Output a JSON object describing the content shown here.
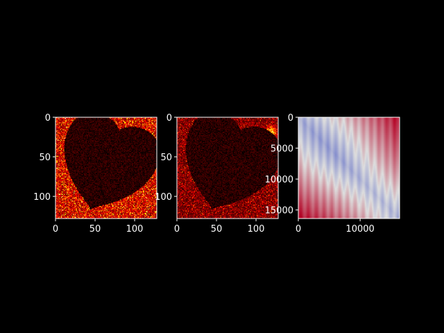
{
  "figure": {
    "background": "#000000",
    "text_color": "#ffffff"
  },
  "chart_data": [
    {
      "type": "heatmap",
      "colormap": "hot",
      "title": "",
      "xlabel": "",
      "ylabel": "",
      "xlim": [
        0,
        128
      ],
      "ylim": [
        128,
        0
      ],
      "x_ticks": [
        0,
        50,
        100
      ],
      "y_ticks": [
        0,
        50,
        100
      ],
      "x_tick_labels": [
        "0",
        "50",
        "100"
      ],
      "y_tick_labels": [
        "0",
        "50",
        "100"
      ],
      "pattern": "dark heart-shaped void with noisy bright speckles concentrated along the lower-left and right borders",
      "grid": false
    },
    {
      "type": "heatmap",
      "colormap": "hot",
      "title": "",
      "xlabel": "",
      "ylabel": "",
      "xlim": [
        0,
        128
      ],
      "ylim": [
        128,
        0
      ],
      "x_ticks": [
        0,
        50,
        100
      ],
      "y_ticks": [
        0,
        50,
        100
      ],
      "x_tick_labels": [
        "0",
        "50",
        "100"
      ],
      "y_tick_labels": [
        "0",
        "50",
        "100"
      ],
      "pattern": "dark heart-shaped void with dimmer red noise border and bright hotspots near the upper right",
      "grid": false
    },
    {
      "type": "heatmap",
      "colormap": "coolwarm",
      "title": "",
      "xlabel": "",
      "ylabel": "",
      "xlim": [
        0,
        16384
      ],
      "ylim": [
        16384,
        0
      ],
      "x_ticks": [
        0,
        10000
      ],
      "y_ticks": [
        0,
        5000,
        10000,
        15000
      ],
      "x_tick_labels": [
        "0",
        "10000"
      ],
      "y_tick_labels": [
        "0",
        "5000",
        "10000",
        "15000"
      ],
      "pattern": "diagonal blue band from upper-left to lower-right with red corners, overlaid with vertical stripes",
      "grid": false
    }
  ]
}
